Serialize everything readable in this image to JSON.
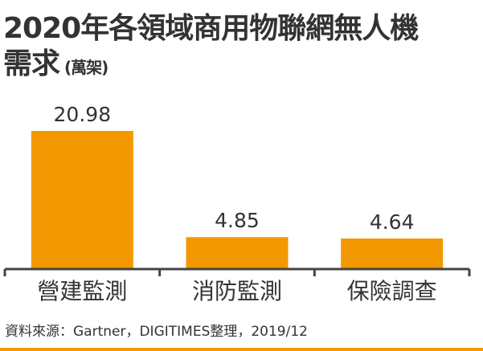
{
  "chart_data": {
    "type": "bar",
    "title": "2020年各領域商用物聯網無人機需求",
    "title_line1": "2020年各領域商用物聯網無人機",
    "title_line2": "需求",
    "unit": "(萬架)",
    "categories": [
      "營建監測",
      "消防監測",
      "保險調查"
    ],
    "values": [
      20.98,
      4.85,
      4.64
    ],
    "value_labels": [
      "20.98",
      "4.85",
      "4.64"
    ],
    "ylim": [
      0,
      22
    ],
    "grid": false,
    "bar_color": "#f39800",
    "axis_color": "#444444",
    "source": "資料來源：Gartner，DIGITIMES整理，2019/12"
  }
}
